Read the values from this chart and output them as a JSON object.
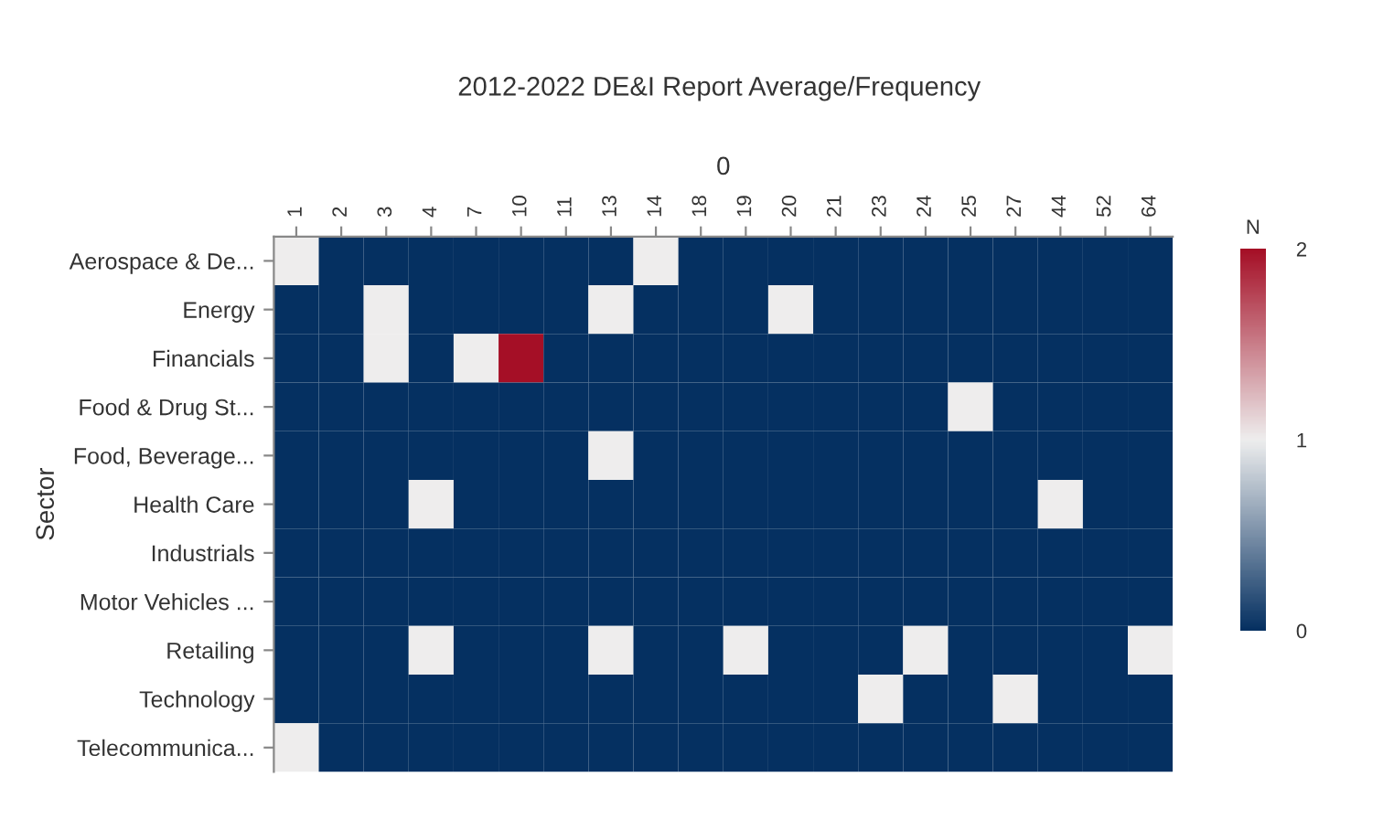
{
  "chart_data": {
    "type": "heatmap",
    "title": "2012-2022 DE&I Report Average/Frequency",
    "xlabel": "0",
    "ylabel": "Sector",
    "clabel": "N",
    "categories": [
      "1",
      "2",
      "3",
      "4",
      "7",
      "10",
      "11",
      "13",
      "14",
      "18",
      "19",
      "20",
      "21",
      "23",
      "24",
      "25",
      "27",
      "44",
      "52",
      "64"
    ],
    "y_categories": [
      "Aerospace & De...",
      "Energy",
      "Financials",
      "Food & Drug St...",
      "Food, Beverage...",
      "Health Care",
      "Industrials",
      "Motor Vehicles ...",
      "Retailing",
      "Technology",
      "Telecommunica..."
    ],
    "cells": [
      [
        1,
        0,
        0,
        0,
        0,
        0,
        0,
        0,
        1,
        0,
        0,
        0,
        0,
        0,
        0,
        0,
        0,
        0,
        0,
        0
      ],
      [
        0,
        0,
        1,
        0,
        0,
        0,
        0,
        1,
        0,
        0,
        0,
        1,
        0,
        0,
        0,
        0,
        0,
        0,
        0,
        0
      ],
      [
        0,
        0,
        1,
        0,
        1,
        2,
        0,
        0,
        0,
        0,
        0,
        0,
        0,
        0,
        0,
        0,
        0,
        0,
        0,
        0
      ],
      [
        0,
        0,
        0,
        0,
        0,
        0,
        0,
        0,
        0,
        0,
        0,
        0,
        0,
        0,
        0,
        1,
        0,
        0,
        0,
        0
      ],
      [
        0,
        0,
        0,
        0,
        0,
        0,
        0,
        1,
        0,
        0,
        0,
        0,
        0,
        0,
        0,
        0,
        0,
        0,
        0,
        0
      ],
      [
        0,
        0,
        0,
        1,
        0,
        0,
        0,
        0,
        0,
        0,
        0,
        0,
        0,
        0,
        0,
        0,
        0,
        1,
        0,
        0
      ],
      [
        0,
        0,
        0,
        0,
        0,
        0,
        0,
        0,
        0,
        0,
        0,
        0,
        0,
        0,
        0,
        0,
        0,
        0,
        0,
        0
      ],
      [
        0,
        0,
        0,
        0,
        0,
        0,
        0,
        0,
        0,
        0,
        0,
        0,
        0,
        0,
        0,
        0,
        0,
        0,
        0,
        0
      ],
      [
        0,
        0,
        0,
        1,
        0,
        0,
        0,
        1,
        0,
        0,
        1,
        0,
        0,
        0,
        1,
        0,
        0,
        0,
        0,
        1
      ],
      [
        0,
        0,
        0,
        0,
        0,
        0,
        0,
        0,
        0,
        0,
        0,
        0,
        0,
        1,
        0,
        0,
        1,
        0,
        0,
        0
      ],
      [
        1,
        0,
        0,
        0,
        0,
        0,
        0,
        0,
        0,
        0,
        0,
        0,
        0,
        0,
        0,
        0,
        0,
        0,
        0,
        0
      ]
    ],
    "clim": [
      0,
      2
    ],
    "cticks": [
      0,
      1,
      2
    ],
    "colors": [
      "#053061",
      "#eeeeee",
      "#a50f26"
    ]
  }
}
